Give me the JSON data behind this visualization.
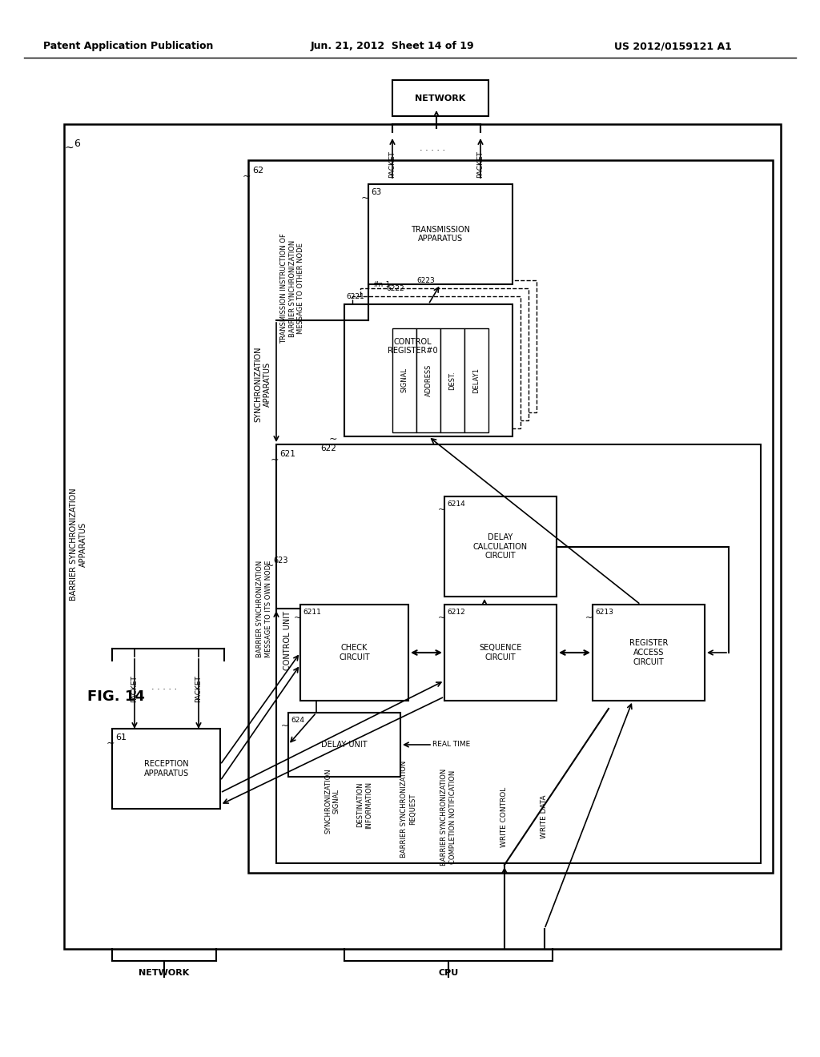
{
  "title_left": "Patent Application Publication",
  "title_center": "Jun. 21, 2012  Sheet 14 of 19",
  "title_right": "US 2012/0159121 A1",
  "fig_label": "FIG. 14",
  "background_color": "#ffffff",
  "line_color": "#000000",
  "text_color": "#000000"
}
